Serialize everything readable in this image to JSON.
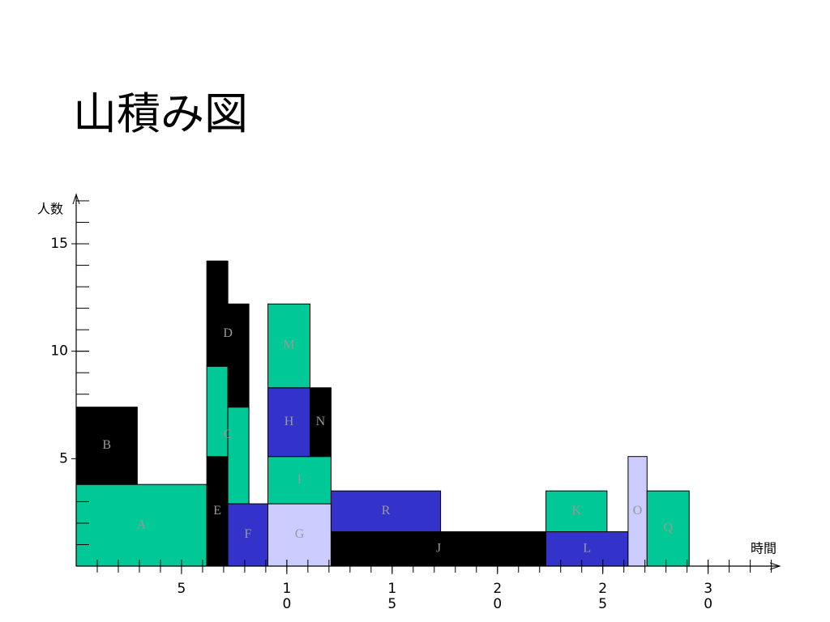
{
  "title": "山積み図",
  "chart_data": {
    "type": "blocks",
    "ylabel": "人数",
    "xlabel": "時間",
    "xlim": [
      0,
      33.4
    ],
    "ylim": [
      0,
      17.3
    ],
    "xticks": [
      5,
      10,
      15,
      20,
      25,
      30
    ],
    "xminorticks": [
      1,
      2,
      3,
      4,
      5,
      6,
      7,
      8,
      9,
      10,
      11,
      12,
      13,
      14,
      15,
      16,
      17,
      18,
      19,
      20,
      21,
      22,
      23,
      24,
      25,
      26,
      27,
      28,
      29,
      30,
      31,
      32,
      33
    ],
    "yticks": [
      5,
      10,
      15
    ],
    "yminorticks": [
      1,
      2,
      3,
      4,
      5,
      6,
      7,
      8,
      9,
      10,
      11,
      12,
      13,
      14,
      15,
      16,
      17
    ],
    "blocks": [
      {
        "label": "A",
        "color": "#00c896",
        "parts": [
          [
            0,
            6.2,
            0,
            3.8
          ]
        ]
      },
      {
        "label": "B",
        "color": "#000000",
        "parts": [
          [
            0,
            2.9,
            3.8,
            7.4
          ]
        ]
      },
      {
        "label": "E",
        "color": "#000000",
        "parts": [
          [
            6.2,
            7.2,
            0,
            5.1
          ]
        ]
      },
      {
        "label": "C",
        "color": "#00c896",
        "parts": [
          [
            6.2,
            7.2,
            5.1,
            9.3
          ],
          [
            7.2,
            8.2,
            2.9,
            7.4
          ]
        ]
      },
      {
        "label": "D",
        "color": "#000000",
        "parts": [
          [
            6.2,
            7.2,
            9.3,
            14.2
          ],
          [
            7.2,
            8.2,
            7.4,
            12.2
          ]
        ]
      },
      {
        "label": "F",
        "color": "#3333cc",
        "parts": [
          [
            7.2,
            9.1,
            0,
            2.9
          ]
        ]
      },
      {
        "label": "G",
        "color": "#ccccff",
        "parts": [
          [
            9.1,
            12.1,
            0,
            2.9
          ]
        ]
      },
      {
        "label": "I",
        "color": "#00c896",
        "parts": [
          [
            9.1,
            12.1,
            2.9,
            5.1
          ]
        ]
      },
      {
        "label": "H",
        "color": "#3333cc",
        "parts": [
          [
            9.1,
            11.1,
            5.1,
            8.3
          ]
        ]
      },
      {
        "label": "M",
        "color": "#00c896",
        "parts": [
          [
            9.1,
            11.1,
            8.3,
            12.2
          ]
        ]
      },
      {
        "label": "N",
        "color": "#000000",
        "parts": [
          [
            11.1,
            12.1,
            5.1,
            8.3
          ]
        ]
      },
      {
        "label": "J",
        "color": "#000000",
        "parts": [
          [
            12.1,
            22.3,
            0,
            1.6
          ]
        ]
      },
      {
        "label": "R",
        "color": "#3333cc",
        "parts": [
          [
            12.1,
            17.3,
            1.6,
            3.5
          ]
        ]
      },
      {
        "label": "L",
        "color": "#3333cc",
        "parts": [
          [
            22.3,
            26.2,
            0,
            1.6
          ]
        ]
      },
      {
        "label": "K",
        "color": "#00c896",
        "parts": [
          [
            22.3,
            25.2,
            1.6,
            3.5
          ]
        ]
      },
      {
        "label": "O",
        "color": "#ccccff",
        "parts": [
          [
            26.2,
            27.1,
            0,
            5.1
          ]
        ]
      },
      {
        "label": "Q",
        "color": "#00c896",
        "parts": [
          [
            27.1,
            29.1,
            0,
            3.5
          ]
        ]
      }
    ]
  }
}
